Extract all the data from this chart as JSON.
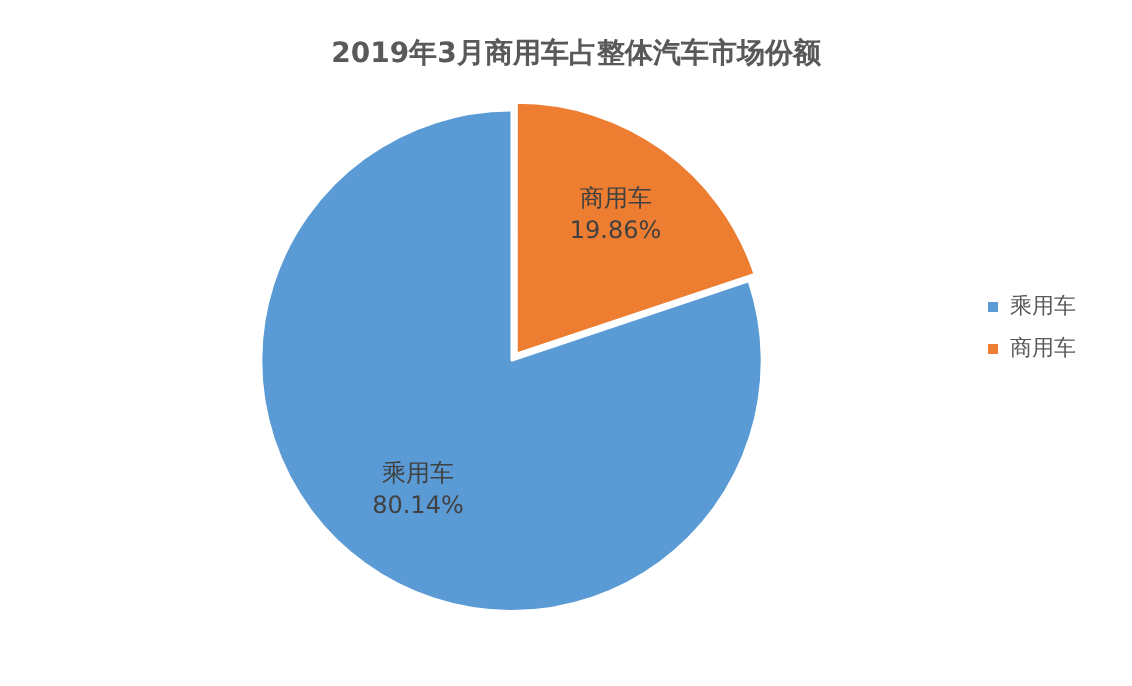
{
  "chart_data": {
    "type": "pie",
    "title": "2019年3月商用车占整体汽车市场份额",
    "categories": [
      "乘用车",
      "商用车"
    ],
    "values": [
      80.14,
      19.86
    ],
    "colors": [
      "#5b9bd5",
      "#ed7d31"
    ],
    "value_labels": [
      "80.14%",
      "19.86%"
    ],
    "legend": "right"
  }
}
